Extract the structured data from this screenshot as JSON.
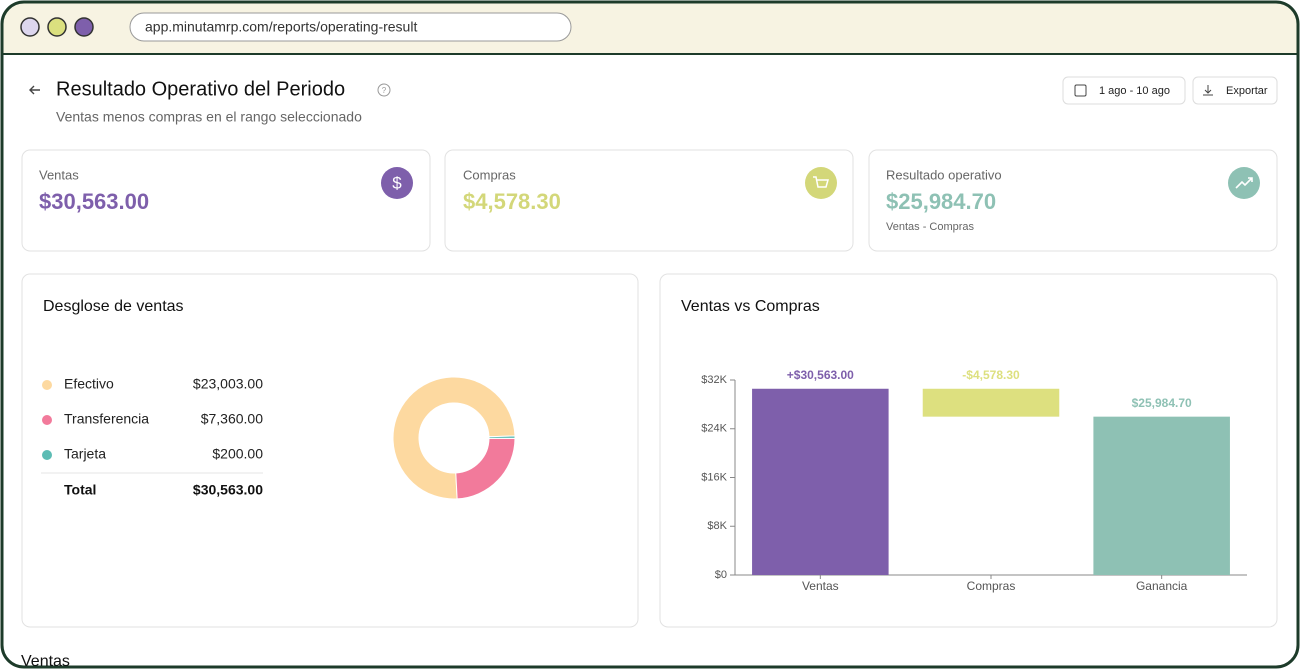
{
  "browser": {
    "url": "app.minutamrp.com/reports/operating-result"
  },
  "header": {
    "title": "Resultado Operativo del Periodo",
    "subtitle": "Ventas menos compras en el rango seleccionado",
    "date_range": "1 ago - 10 ago",
    "export": "Exportar"
  },
  "cards": [
    {
      "label": "Ventas",
      "value": "$30,563.00",
      "color": "#7e5fab"
    },
    {
      "label": "Compras",
      "value": "$4,578.30",
      "color": "#d3d779"
    },
    {
      "label": "Resultado operativo",
      "value": "$25,984.70",
      "color": "#8ec1b4",
      "note": "Ventas - Compras"
    }
  ],
  "section": "Ventas",
  "chart_data": [
    {
      "type": "donut",
      "title": "Desglose de ventas",
      "categories": [
        "Efectivo",
        "Transferencia",
        "Tarjeta"
      ],
      "values": [
        23003,
        7360,
        200
      ],
      "value_labels": [
        "$23,003.00",
        "$7,360.00",
        "$200.00"
      ],
      "colors": [
        "#fdd9a0",
        "#f27a9b",
        "#5cbcb4"
      ],
      "total": {
        "label": "Total",
        "value_label": "$30,563.00"
      }
    },
    {
      "type": "waterfall",
      "title": "Ventas vs Compras",
      "categories": [
        "Ventas",
        "Compras",
        "Ganancia"
      ],
      "values": [
        30563,
        -4578.3,
        25984.7
      ],
      "value_labels": [
        "+$30,563.00",
        "-$4,578.30",
        "$25,984.70"
      ],
      "measures": [
        "relative",
        "relative",
        "total"
      ],
      "colors": [
        "#7e5fab",
        "#dde07f",
        "#8ec1b4"
      ],
      "ylim": [
        0,
        32000
      ],
      "yticks": [
        {
          "value": 0,
          "label": "$0"
        },
        {
          "value": 8000,
          "label": "$8K"
        },
        {
          "value": 16000,
          "label": "$16K"
        },
        {
          "value": 24000,
          "label": "$24K"
        },
        {
          "value": 32000,
          "label": "$32K"
        }
      ]
    }
  ]
}
